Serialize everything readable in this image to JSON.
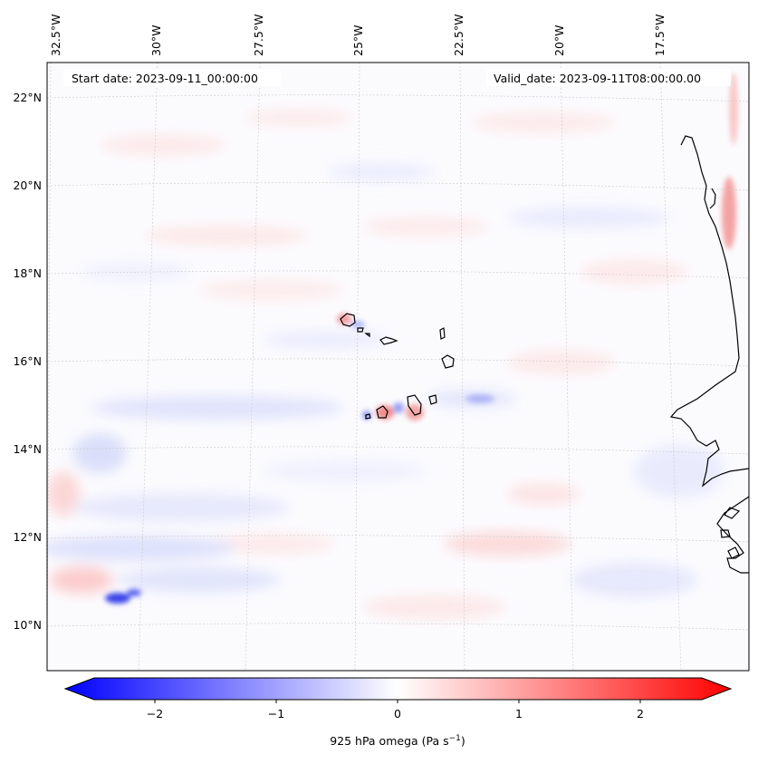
{
  "map": {
    "start_date": "Start date: 2023-09-11_00:00:00",
    "valid_date": "Valid_date: 2023-09-11T08:00:00.00",
    "lon_labels": [
      "32.5°W",
      "30°W",
      "27.5°W",
      "25°W",
      "22.5°W",
      "20°W",
      "17.5°W"
    ],
    "lat_labels": [
      "22°N",
      "20°N",
      "18°N",
      "16°N",
      "14°N",
      "12°N",
      "10°N"
    ]
  },
  "colorbar": {
    "ticks": [
      "−2",
      "−1",
      "0",
      "1",
      "2"
    ],
    "label": "925 hPa omega (Pa s",
    "label_sup": "−1",
    "label_end": ")",
    "min": -2.7,
    "max": 2.7,
    "colors": {
      "low": "#0000ff",
      "mid": "#ffffff",
      "high": "#ff0000"
    }
  }
}
